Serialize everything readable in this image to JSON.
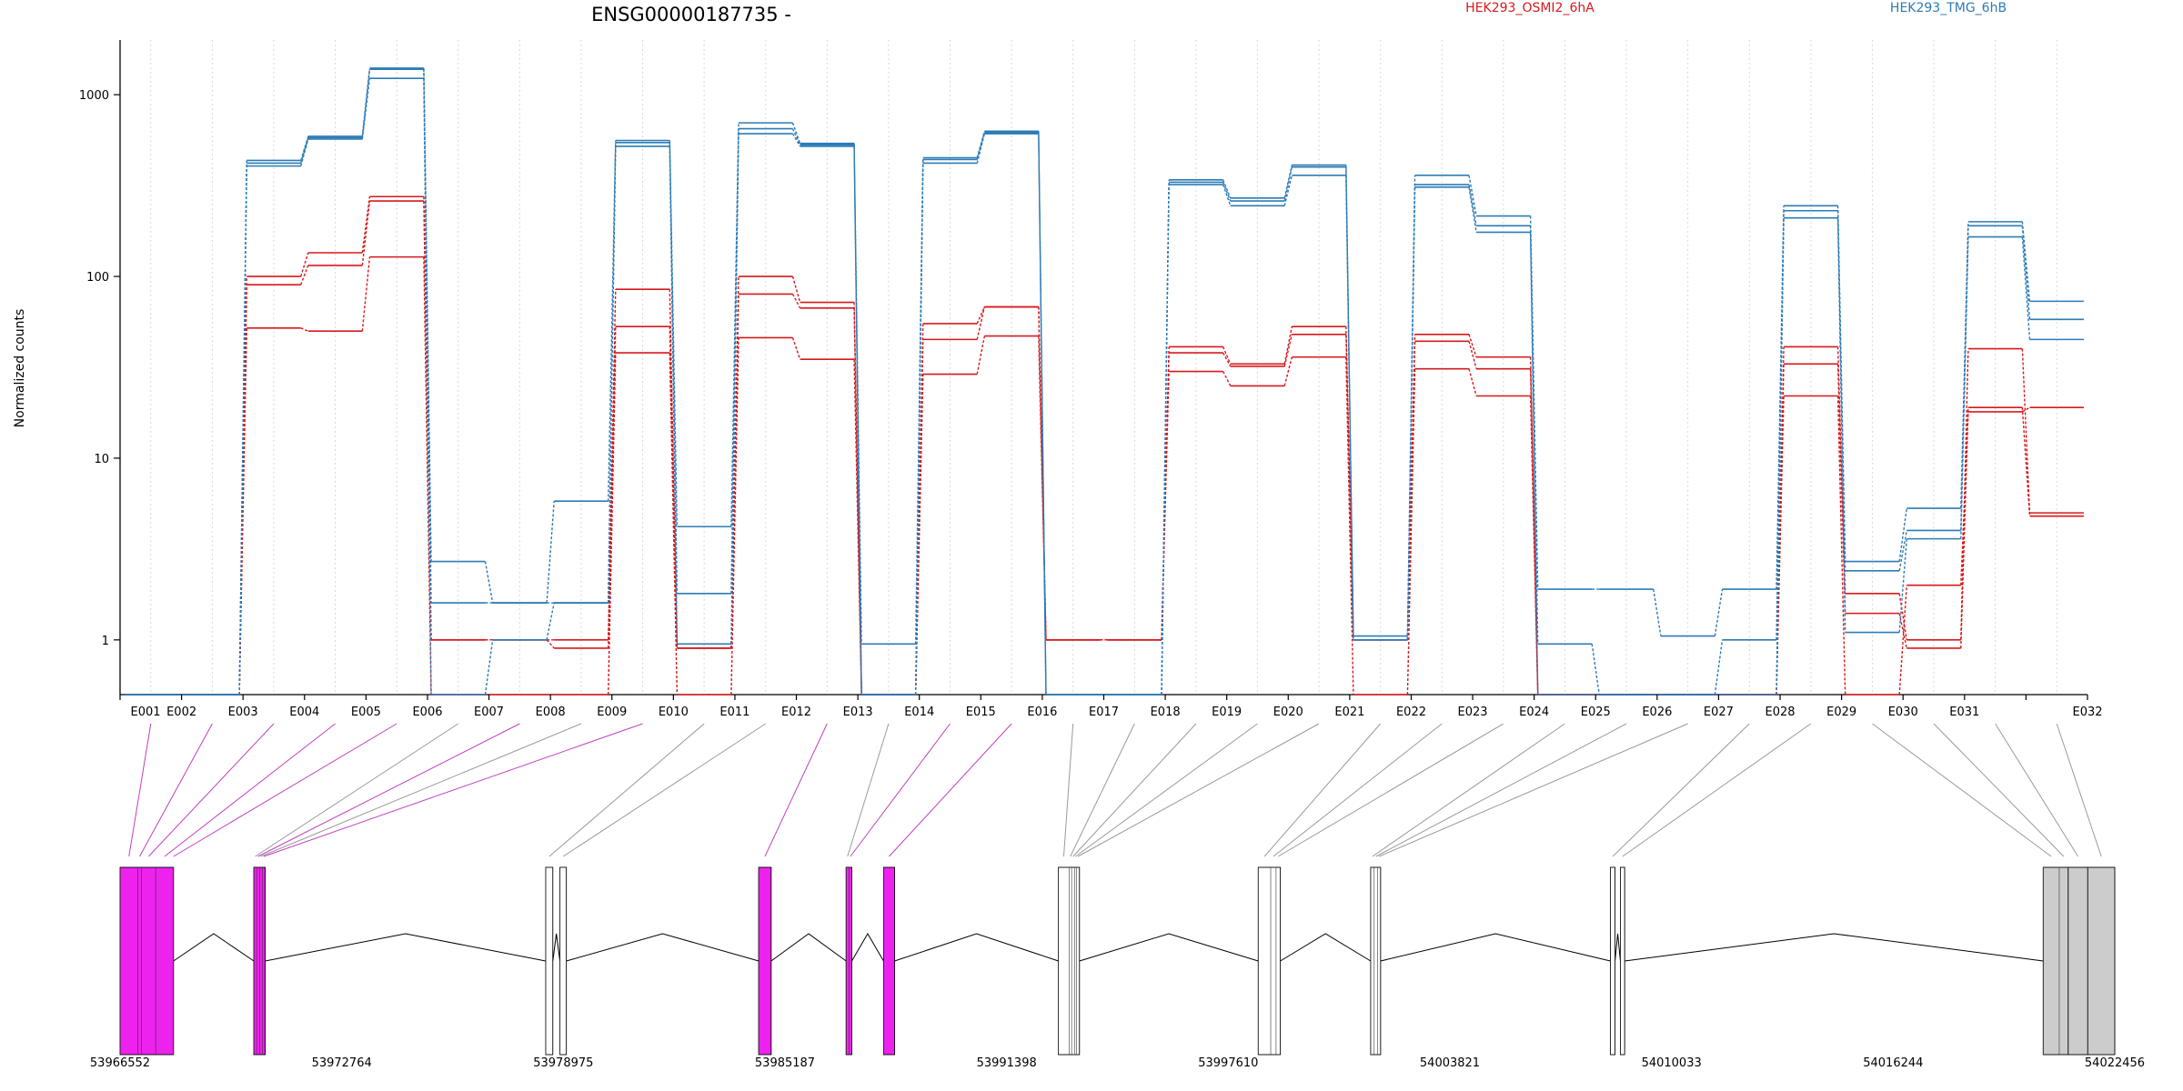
{
  "chart_data": {
    "type": "line",
    "title": "ENSG00000187735 -",
    "xlabel": "",
    "ylabel": "Normalized counts",
    "y_scale": "log",
    "ylim": [
      0.5,
      2000
    ],
    "y_ticks": [
      1,
      10,
      100,
      1000
    ],
    "y_tick_labels": [
      "1",
      "10",
      "100",
      "1000"
    ],
    "grid": "vertical dotted lines at each exon",
    "legend_position": "top-right",
    "colors": {
      "HEK293_OSMI2_6hA": "#d7191c",
      "HEK293_TMG_6hB": "#2c7bb6",
      "transcript_highlight": "#ee22ee",
      "exon_grey": "#cccccc"
    },
    "categories": [
      "E001",
      "E002",
      "E003",
      "E004",
      "E005",
      "E006",
      "E007",
      "E008",
      "E009",
      "E010",
      "E011",
      "E012",
      "E013",
      "E014",
      "E015",
      "E016",
      "E017",
      "E018",
      "E019",
      "E020",
      "E021",
      "E022",
      "E023",
      "E024",
      "E025",
      "E026",
      "E027",
      "E028",
      "E029",
      "E030",
      "E031",
      "E032"
    ],
    "series": [
      {
        "name": "HEK293_OSMI2_6hA",
        "group": "HEK293_OSMI2_6hA",
        "color": "#d7191c",
        "values": [
          0.5,
          0.5,
          100,
          135,
          275,
          1,
          1,
          1,
          85,
          0.9,
          100,
          72,
          0.5,
          55,
          68,
          1,
          1,
          41,
          33,
          53,
          1,
          48,
          36,
          0.5,
          0.5,
          0.5,
          0.5,
          41,
          1.8,
          1,
          40,
          5
        ]
      },
      {
        "name": "HEK293_OSMI2_6hA",
        "group": "HEK293_OSMI2_6hA",
        "color": "#d7191c",
        "values": [
          0.5,
          0.5,
          90,
          115,
          260,
          1,
          1,
          0.9,
          53,
          0.9,
          80,
          67,
          0.5,
          45,
          68,
          1,
          1,
          38,
          32,
          48,
          1,
          44,
          31,
          0.5,
          0.5,
          0.5,
          0.5,
          33,
          1.4,
          0.9,
          19,
          4.8
        ]
      },
      {
        "name": "HEK293_OSMI2_6hA",
        "group": "HEK293_OSMI2_6hA",
        "color": "#d7191c",
        "values": [
          0.5,
          0.5,
          52,
          50,
          128,
          0.5,
          0.5,
          0.5,
          38,
          0.5,
          46,
          35,
          0.5,
          29,
          47,
          1,
          1,
          30,
          25,
          36,
          0.5,
          31,
          22,
          0.5,
          0.5,
          0.5,
          0.5,
          22,
          0.5,
          2,
          18,
          19
        ]
      },
      {
        "name": "HEK293_TMG_6hB",
        "group": "HEK293_TMG_6hB",
        "color": "#2c7bb6",
        "values": [
          0.5,
          0.5,
          435,
          590,
          1400,
          2.7,
          1.6,
          5.8,
          560,
          4.2,
          700,
          540,
          0.95,
          450,
          630,
          0.5,
          0.5,
          340,
          270,
          410,
          1.05,
          360,
          215,
          1.9,
          1.9,
          1.05,
          1.9,
          245,
          2.7,
          5.3,
          200,
          73
        ]
      },
      {
        "name": "HEK293_TMG_6hB",
        "group": "HEK293_TMG_6hB",
        "color": "#2c7bb6",
        "values": [
          0.5,
          0.5,
          420,
          580,
          1380,
          1.6,
          1.6,
          1.6,
          545,
          1.8,
          650,
          530,
          0.5,
          440,
          620,
          0.5,
          0.5,
          330,
          260,
          400,
          1,
          320,
          190,
          0.95,
          0.5,
          0.5,
          1,
          230,
          2.4,
          4,
          190,
          58
        ]
      },
      {
        "name": "HEK293_TMG_6hB",
        "group": "HEK293_TMG_6hB",
        "color": "#2c7bb6",
        "values": [
          0.5,
          0.5,
          405,
          570,
          1230,
          0.5,
          1,
          1.6,
          520,
          0.95,
          610,
          520,
          0.5,
          420,
          610,
          0.5,
          0.5,
          320,
          245,
          360,
          1,
          310,
          175,
          0.5,
          0.5,
          0.5,
          0.5,
          210,
          1.1,
          3.6,
          165,
          45
        ]
      }
    ],
    "gene_coordinate_labels": [
      "53966552",
      "53972764",
      "53978975",
      "53985187",
      "53991398",
      "53997610",
      "54003821",
      "54010033",
      "54016244",
      "54022456"
    ],
    "gene_range": [
      53966552,
      54022456
    ],
    "exons": [
      {
        "id": "E001",
        "start": 53966552,
        "end": 53967050,
        "highlight": true
      },
      {
        "id": "E002",
        "start": 53967050,
        "end": 53967150,
        "highlight": true
      },
      {
        "id": "E003",
        "start": 53967150,
        "end": 53967550,
        "highlight": true
      },
      {
        "id": "E004",
        "start": 53967550,
        "end": 53968050,
        "highlight": true
      },
      {
        "id": "E005",
        "start": 53968050,
        "end": 53968050,
        "highlight": true
      },
      {
        "id": "E006",
        "start": 53970300,
        "end": 53970380,
        "highlight": false
      },
      {
        "id": "E007",
        "start": 53970380,
        "end": 53970460,
        "highlight": true
      },
      {
        "id": "E008",
        "start": 53970460,
        "end": 53970540,
        "highlight": false
      },
      {
        "id": "E009",
        "start": 53970540,
        "end": 53970620,
        "highlight": true
      },
      {
        "id": "E010",
        "start": 53978480,
        "end": 53978680,
        "highlight": false
      },
      {
        "id": "E011",
        "start": 53978880,
        "end": 53979060,
        "highlight": false
      },
      {
        "id": "E012",
        "start": 53984450,
        "end": 53984800,
        "highlight": true
      },
      {
        "id": "E013",
        "start": 53986900,
        "end": 53986980,
        "highlight": false
      },
      {
        "id": "E014",
        "start": 53986980,
        "end": 53987060,
        "highlight": true
      },
      {
        "id": "E015",
        "start": 53987950,
        "end": 53988260,
        "highlight": true
      },
      {
        "id": "E016",
        "start": 53992850,
        "end": 53993150,
        "highlight": false
      },
      {
        "id": "E017",
        "start": 53993150,
        "end": 53993220,
        "highlight": false
      },
      {
        "id": "E018",
        "start": 53993220,
        "end": 53993300,
        "highlight": false
      },
      {
        "id": "E019",
        "start": 53993300,
        "end": 53993360,
        "highlight": false
      },
      {
        "id": "E020",
        "start": 53993360,
        "end": 53993440,
        "highlight": false
      },
      {
        "id": "E021",
        "start": 53998450,
        "end": 53998800,
        "highlight": false
      },
      {
        "id": "E022",
        "start": 53998800,
        "end": 53998950,
        "highlight": false
      },
      {
        "id": "E023",
        "start": 53998950,
        "end": 53999070,
        "highlight": false
      },
      {
        "id": "E024",
        "start": 54001600,
        "end": 54001700,
        "highlight": false
      },
      {
        "id": "E025",
        "start": 54001700,
        "end": 54001800,
        "highlight": false
      },
      {
        "id": "E026",
        "start": 54001800,
        "end": 54001880,
        "highlight": false
      },
      {
        "id": "E027",
        "start": 54008320,
        "end": 54008450,
        "highlight": false
      },
      {
        "id": "E028",
        "start": 54008600,
        "end": 54008720,
        "highlight": false
      },
      {
        "id": "E029",
        "start": 54020450,
        "end": 54020900,
        "highlight": false,
        "grey": true
      },
      {
        "id": "E030",
        "start": 54020900,
        "end": 54021150,
        "highlight": false,
        "grey": true
      },
      {
        "id": "E031",
        "start": 54021150,
        "end": 54021700,
        "highlight": false,
        "grey": true
      },
      {
        "id": "E032",
        "start": 54021700,
        "end": 54022456,
        "highlight": false,
        "grey": true
      }
    ],
    "exon_blocks": [
      {
        "start": 53966552,
        "end": 53968050,
        "fill": "#ee22ee"
      },
      {
        "start": 53970300,
        "end": 53970620,
        "fill": "#ee22ee"
      },
      {
        "start": 53978480,
        "end": 53978680,
        "fill": "#ffffff"
      },
      {
        "start": 53978880,
        "end": 53979060,
        "fill": "#ffffff"
      },
      {
        "start": 53984450,
        "end": 53984800,
        "fill": "#ee22ee"
      },
      {
        "start": 53986900,
        "end": 53987060,
        "fill": "#ee22ee"
      },
      {
        "start": 53987950,
        "end": 53988260,
        "fill": "#ee22ee"
      },
      {
        "start": 53992850,
        "end": 53993440,
        "fill": "#ffffff"
      },
      {
        "start": 53998450,
        "end": 53999070,
        "fill": "#ffffff"
      },
      {
        "start": 54001600,
        "end": 54001880,
        "fill": "#ffffff"
      },
      {
        "start": 54008320,
        "end": 54008450,
        "fill": "#ffffff"
      },
      {
        "start": 54008600,
        "end": 54008720,
        "fill": "#ffffff"
      },
      {
        "start": 54020450,
        "end": 54021150,
        "fill": "#cccccc"
      },
      {
        "start": 54021150,
        "end": 54021700,
        "fill": "#cccccc"
      },
      {
        "start": 54021700,
        "end": 54022456,
        "fill": "#cccccc"
      }
    ]
  }
}
